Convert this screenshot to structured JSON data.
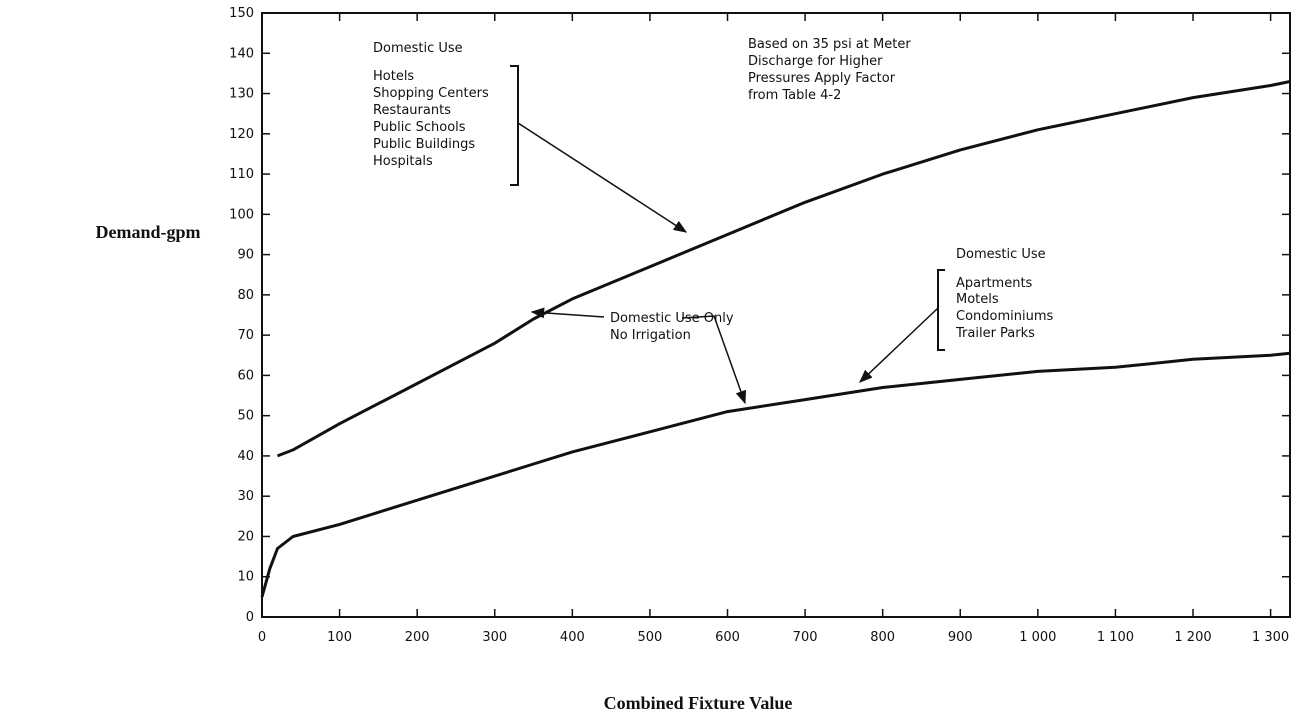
{
  "chart_data": {
    "type": "line",
    "xlabel": "Combined Fixture Value",
    "ylabel": "Demand-gpm",
    "x": [
      0,
      10,
      20,
      40,
      100,
      200,
      300,
      350,
      400,
      500,
      600,
      700,
      800,
      900,
      1000,
      1100,
      1200,
      1300,
      1325
    ],
    "series": [
      {
        "color": "#111111",
        "values": [
          null,
          null,
          40,
          41.5,
          48,
          58,
          68,
          74,
          79,
          87,
          95,
          103,
          110,
          116,
          121,
          125,
          129,
          132,
          133
        ]
      },
      {
        "color": "#111111",
        "values": [
          5,
          12,
          17,
          20,
          23,
          29,
          35,
          38,
          41,
          46,
          51,
          54,
          57,
          59,
          61,
          62,
          64,
          65,
          65.5
        ]
      }
    ],
    "xlim": [
      0,
      1325
    ],
    "ylim": [
      0,
      150
    ],
    "xticks": [
      0,
      100,
      200,
      300,
      400,
      500,
      600,
      700,
      800,
      900,
      {
        "value": 1000,
        "label": "1 000"
      },
      {
        "value": 1100,
        "label": "1 100"
      },
      {
        "value": 1200,
        "label": "1 200"
      },
      {
        "value": 1300,
        "label": "1 300"
      }
    ],
    "yticks": [
      0,
      10,
      20,
      30,
      40,
      50,
      60,
      70,
      80,
      90,
      100,
      110,
      120,
      130,
      140,
      150
    ],
    "annotations": [
      "Domestic Use",
      "Hotels",
      "Shopping Centers",
      "Restaurants",
      "Public Schools",
      "Public Buildings",
      "Hospitals",
      "Based on 35 psi at Meter",
      "Discharge for Higher",
      "Pressures Apply Factor",
      "from Table 4-2",
      "Domestic Use Only",
      "No Irrigation",
      "Domestic Use",
      "Apartments",
      "Motels",
      "Condominiums",
      "Trailer Parks"
    ]
  }
}
